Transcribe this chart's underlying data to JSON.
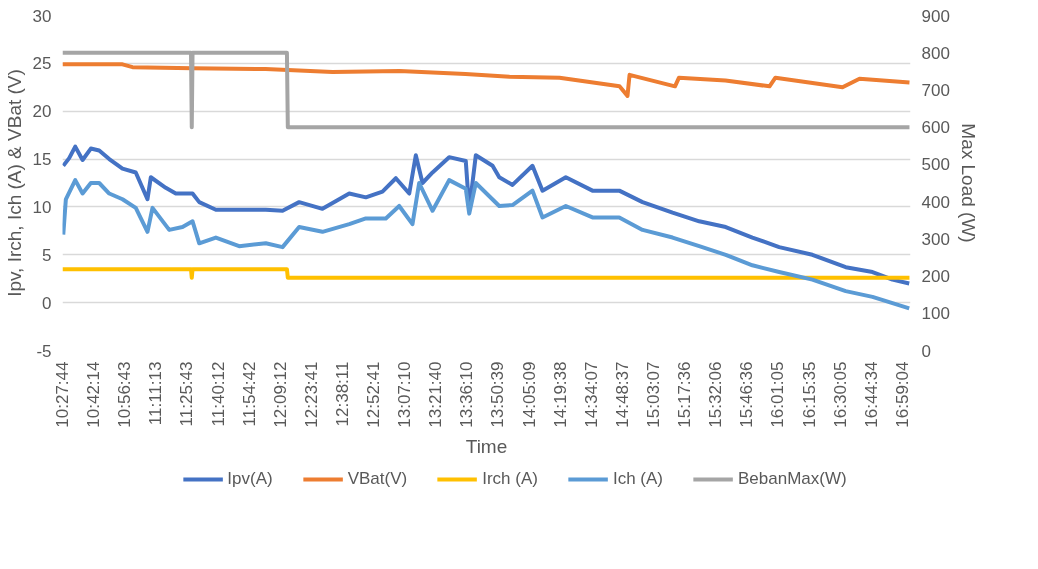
{
  "chart_data": {
    "type": "line",
    "xlabel": "Time",
    "ylabel": "Ipv, Irch, Ich (A) & VBat (V)",
    "y2label": "Max Load (W)",
    "xlim": [
      10.462,
      17.048
    ],
    "ylim": [
      -5,
      30
    ],
    "yticks": [
      -5,
      0,
      5,
      10,
      15,
      20,
      25,
      30
    ],
    "y2lim": [
      0,
      900
    ],
    "y2ticks": [
      0,
      100,
      200,
      300,
      400,
      500,
      600,
      700,
      800,
      900
    ],
    "xticks": [
      {
        "value": 10.46222,
        "label": "10:27:44"
      },
      {
        "value": 10.70389,
        "label": "10:42:14"
      },
      {
        "value": 10.94528,
        "label": "10:56:43"
      },
      {
        "value": 11.18694,
        "label": "11:11:13"
      },
      {
        "value": 11.42861,
        "label": "11:25:43"
      },
      {
        "value": 11.67,
        "label": "11:40:12"
      },
      {
        "value": 11.91167,
        "label": "11:54:42"
      },
      {
        "value": 12.15333,
        "label": "12:09:12"
      },
      {
        "value": 12.39472,
        "label": "12:23:41"
      },
      {
        "value": 12.63639,
        "label": "12:38:11"
      },
      {
        "value": 12.87806,
        "label": "12:52:41"
      },
      {
        "value": 13.11944,
        "label": "13:07:10"
      },
      {
        "value": 13.36111,
        "label": "13:21:40"
      },
      {
        "value": 13.60278,
        "label": "13:36:10"
      },
      {
        "value": 13.84417,
        "label": "13:50:39"
      },
      {
        "value": 14.08583,
        "label": "14:05:09"
      },
      {
        "value": 14.32722,
        "label": "14:19:38"
      },
      {
        "value": 14.56861,
        "label": "14:34:07"
      },
      {
        "value": 14.81028,
        "label": "14:48:37"
      },
      {
        "value": 15.05194,
        "label": "15:03:07"
      },
      {
        "value": 15.29333,
        "label": "15:17:36"
      },
      {
        "value": 15.535,
        "label": "15:32:06"
      },
      {
        "value": 15.77667,
        "label": "15:46:36"
      },
      {
        "value": 16.01806,
        "label": "16:01:05"
      },
      {
        "value": 16.25972,
        "label": "16:15:35"
      },
      {
        "value": 16.50139,
        "label": "16:30:05"
      },
      {
        "value": 16.74278,
        "label": "16:44:34"
      },
      {
        "value": 16.98444,
        "label": "16:59:04"
      }
    ],
    "grid": "y",
    "legend": "bottom",
    "marker": "none",
    "line_style": "solid",
    "series": [
      {
        "name": "Ipv(A)",
        "color": "#4472c4",
        "x": [
          10.468,
          10.514,
          10.561,
          10.618,
          10.682,
          10.747,
          10.825,
          10.928,
          11.031,
          11.122,
          11.148,
          11.264,
          11.342,
          11.472,
          11.524,
          11.653,
          11.782,
          12.041,
          12.171,
          12.3,
          12.481,
          12.689,
          12.818,
          12.947,
          13.051,
          13.155,
          13.206,
          13.258,
          13.336,
          13.465,
          13.594,
          13.621,
          13.672,
          13.802,
          13.854,
          13.957,
          14.112,
          14.19,
          14.371,
          14.578,
          14.786,
          14.967,
          15.2,
          15.407,
          15.613,
          15.82,
          16.028,
          16.286,
          16.545,
          16.753,
          16.908,
          17.038
        ],
        "values": [
          14.3,
          15.1,
          16.3,
          14.9,
          16.1,
          15.9,
          15.0,
          14.0,
          13.6,
          10.8,
          13.1,
          12.0,
          11.4,
          11.4,
          10.5,
          9.7,
          9.7,
          9.7,
          9.6,
          10.5,
          9.8,
          11.4,
          11.0,
          11.6,
          13.0,
          11.4,
          15.4,
          12.5,
          13.6,
          15.2,
          14.8,
          9.7,
          15.4,
          14.3,
          13.1,
          12.3,
          14.3,
          11.7,
          13.1,
          11.7,
          11.7,
          10.5,
          9.4,
          8.5,
          7.9,
          6.8,
          5.8,
          5.0,
          3.7,
          3.2,
          2.4,
          2.0
        ]
      },
      {
        "name": "VBat(V)",
        "color": "#ed7d31",
        "x": [
          10.462,
          10.928,
          11.006,
          11.472,
          12.039,
          12.559,
          13.079,
          13.592,
          13.934,
          14.322,
          14.788,
          14.85,
          14.866,
          15.219,
          15.25,
          15.611,
          15.953,
          15.999,
          16.52,
          16.652,
          17.04
        ],
        "values": [
          24.9,
          24.9,
          24.6,
          24.5,
          24.4,
          24.1,
          24.2,
          23.9,
          23.6,
          23.5,
          22.6,
          21.6,
          23.8,
          22.6,
          23.5,
          23.2,
          22.6,
          23.5,
          22.5,
          23.4,
          23.0
        ]
      },
      {
        "name": "Irch (A)",
        "color": "#ffc000",
        "x": [
          10.462,
          11.46,
          11.466,
          11.472,
          12.205,
          12.212,
          17.04
        ],
        "values": [
          3.5,
          3.5,
          2.6,
          3.5,
          3.5,
          2.6,
          2.6
        ]
      },
      {
        "name": "Ich (A)",
        "color": "#5b9bd5",
        "x": [
          10.468,
          10.488,
          10.561,
          10.618,
          10.682,
          10.747,
          10.825,
          10.928,
          11.031,
          11.122,
          11.161,
          11.291,
          11.394,
          11.472,
          11.524,
          11.653,
          11.834,
          12.041,
          12.171,
          12.3,
          12.481,
          12.689,
          12.818,
          12.973,
          13.077,
          13.18,
          13.232,
          13.336,
          13.465,
          13.594,
          13.621,
          13.672,
          13.854,
          13.957,
          14.112,
          14.19,
          14.371,
          14.578,
          14.786,
          14.967,
          15.2,
          15.407,
          15.613,
          15.82,
          16.028,
          16.286,
          16.545,
          16.753,
          17.038
        ],
        "values": [
          7.1,
          10.8,
          12.8,
          11.4,
          12.5,
          12.5,
          11.4,
          10.8,
          9.9,
          7.4,
          9.9,
          7.6,
          7.9,
          8.5,
          6.2,
          6.8,
          5.9,
          6.2,
          5.8,
          7.9,
          7.4,
          8.2,
          8.8,
          8.8,
          10.1,
          8.2,
          12.5,
          9.6,
          12.8,
          11.9,
          9.3,
          12.5,
          10.1,
          10.2,
          11.7,
          8.9,
          10.1,
          8.9,
          8.9,
          7.6,
          6.8,
          5.9,
          5.0,
          3.9,
          3.2,
          2.4,
          1.2,
          0.6,
          -0.6
        ]
      },
      {
        "name": "BebanMax(W)",
        "color": "#a5a5a5",
        "axis": "y2",
        "x": [
          10.462,
          11.46,
          11.466,
          11.472,
          12.205,
          12.212,
          17.04
        ],
        "values": [
          800,
          800,
          600,
          800,
          800,
          600,
          600
        ]
      }
    ]
  }
}
